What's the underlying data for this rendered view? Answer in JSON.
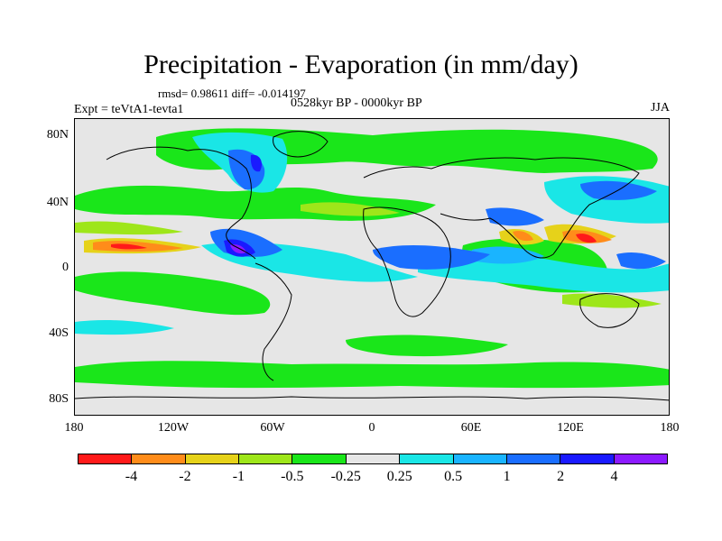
{
  "title": "Precipitation - Evaporation (in mm/day)",
  "stats": "rmsd= 0.98611 diff= -0.014197",
  "period": "0528kyr BP - 0000kyr BP",
  "experiment": "Expt = teVtA1-tevta1",
  "season": "JJA",
  "y_axis_labels": [
    "80N",
    "40N",
    "0",
    "40S",
    "80S"
  ],
  "x_axis_labels": [
    "180",
    "120W",
    "60W",
    "0",
    "60E",
    "120E",
    "180"
  ],
  "colorbar": {
    "labels": [
      "-4",
      "-2",
      "-1",
      "-0.5",
      "-0.25",
      "0.25",
      "0.5",
      "1",
      "2",
      "4"
    ],
    "colors": [
      "#ff1a1a",
      "#ff8c1a",
      "#e6d21a",
      "#9ee61a",
      "#1ae61a",
      "#e6e6e6",
      "#1ae6e6",
      "#1ab4ff",
      "#1a6eff",
      "#1a1aff",
      "#8c1aff"
    ]
  },
  "fields": {
    "background": "#e6e6e6",
    "coastline_color": "#000000"
  }
}
